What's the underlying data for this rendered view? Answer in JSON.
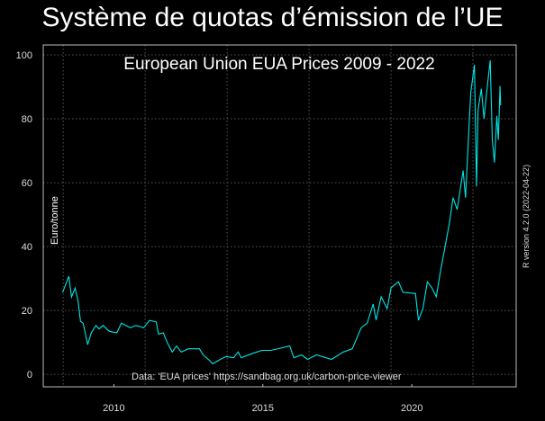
{
  "slide_title": "Système de quotas d’émission de l’UE",
  "chart_data": {
    "type": "line",
    "title": "European Union EUA Prices 2009 - 2022",
    "xlabel": "",
    "ylabel": "Euro/tonne",
    "source_note": "Data: 'EUA prices' https://sandbag.org.uk/carbon-price-viewer",
    "side_note": "R version 4.2.0 (2022-04-22)",
    "xlim": [
      2007.63,
      2023.5
    ],
    "ylim": [
      -3.9,
      103.1
    ],
    "x_ticks": [
      2010,
      2015,
      2020
    ],
    "x_tick_labels": [
      "2010",
      "2015",
      "2020"
    ],
    "y_ticks": [
      0,
      20,
      40,
      60,
      80,
      100
    ],
    "y_tick_labels": [
      "0",
      "20",
      "40",
      "60",
      "80",
      "100"
    ],
    "grid": true,
    "line_color": "#00e5e5",
    "series": [
      {
        "name": "EUA price",
        "x": [
          2008.28,
          2008.49,
          2008.58,
          2008.7,
          2008.79,
          2008.88,
          2008.97,
          2009.12,
          2009.24,
          2009.4,
          2009.5,
          2009.64,
          2009.84,
          2010.1,
          2010.25,
          2010.55,
          2010.74,
          2011.0,
          2011.2,
          2011.42,
          2011.5,
          2011.66,
          2011.8,
          2011.96,
          2012.1,
          2012.26,
          2012.5,
          2012.87,
          2013.0,
          2013.17,
          2013.32,
          2013.57,
          2013.77,
          2014.02,
          2014.17,
          2014.27,
          2014.67,
          2014.97,
          2015.27,
          2015.6,
          2015.9,
          2016.04,
          2016.3,
          2016.5,
          2016.8,
          2017.3,
          2017.7,
          2018.0,
          2018.3,
          2018.5,
          2018.7,
          2018.8,
          2018.97,
          2019.17,
          2019.3,
          2019.55,
          2019.7,
          2020.12,
          2020.22,
          2020.37,
          2020.52,
          2020.67,
          2020.82,
          2020.97,
          2021.12,
          2021.27,
          2021.38,
          2021.52,
          2021.72,
          2021.8,
          2021.93,
          2021.98,
          2022.1,
          2022.17,
          2022.22,
          2022.33,
          2022.42,
          2022.5,
          2022.63,
          2022.7,
          2022.77,
          2022.85,
          2022.9,
          2022.96,
          2022.98
        ],
        "y": [
          25.6,
          30.7,
          24.2,
          27,
          23.4,
          16.6,
          16,
          9.3,
          13,
          15.3,
          14.2,
          15.3,
          13.5,
          13,
          16,
          14.6,
          15.3,
          14.6,
          16.9,
          16.4,
          12.6,
          13,
          9.8,
          7,
          8.9,
          7,
          8,
          8,
          6.1,
          4.7,
          3.3,
          4.7,
          5.6,
          5.2,
          7,
          5.2,
          6.6,
          7.5,
          7.5,
          8.2,
          8.9,
          5.2,
          6.1,
          4.7,
          6.1,
          4.7,
          7,
          8,
          14.6,
          16,
          22,
          17,
          24.3,
          20.6,
          27.1,
          29,
          25.7,
          25.3,
          16.9,
          20.6,
          29,
          27.1,
          24.3,
          32.8,
          40.3,
          47.8,
          55.3,
          51.6,
          63.8,
          55.3,
          80,
          88.5,
          96.9,
          58.8,
          82.8,
          89.4,
          80,
          87.5,
          98.3,
          73.4,
          66.3,
          80.9,
          73.4,
          90.3,
          84.2
        ]
      }
    ]
  }
}
